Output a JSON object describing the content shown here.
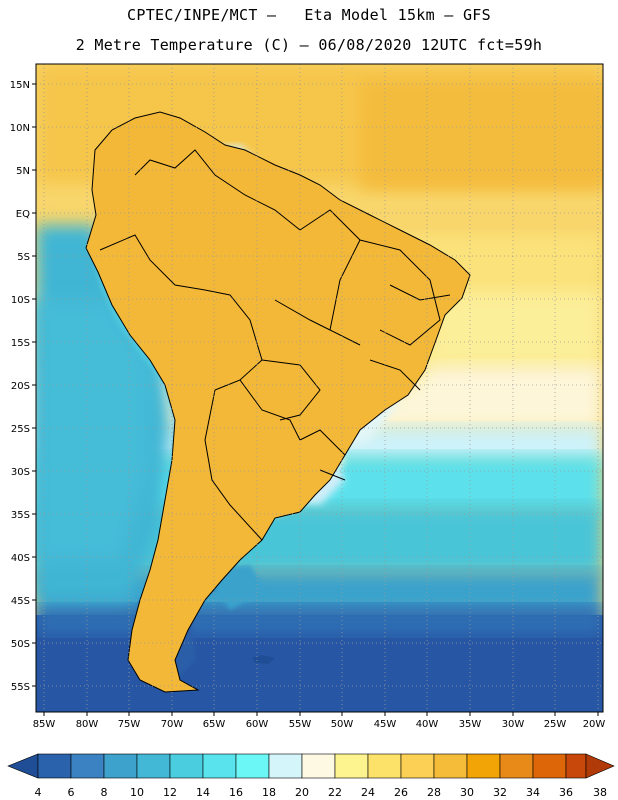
{
  "header": {
    "title_line1": "CPTEC/INPE/MCT –   Eta Model 15km – GFS",
    "title_line2": "2 Metre Temperature (C) – 06/08/2020 12UTC fct=59h"
  },
  "map": {
    "lat_ticks": [
      "15N",
      "10N",
      "5N",
      "EQ",
      "5S",
      "10S",
      "15S",
      "20S",
      "25S",
      "30S",
      "35S",
      "40S",
      "45S",
      "50S",
      "55S"
    ],
    "lon_ticks": [
      "85W",
      "80W",
      "75W",
      "70W",
      "65W",
      "60W",
      "55W",
      "50W",
      "45W",
      "40W",
      "35W",
      "30W",
      "25W",
      "20W"
    ]
  },
  "legend": {
    "levels": [
      "4",
      "6",
      "8",
      "10",
      "12",
      "14",
      "16",
      "18",
      "20",
      "22",
      "24",
      "26",
      "28",
      "30",
      "32",
      "34",
      "36",
      "38"
    ],
    "colors": [
      "#1f4e96",
      "#2a63ac",
      "#3a82c2",
      "#3ea3cc",
      "#43b8d6",
      "#4bcde0",
      "#59e3ec",
      "#6cf7f7",
      "#d4f6fb",
      "#fdf9e3",
      "#fdf48f",
      "#fde26a",
      "#fbd054",
      "#f4bc39",
      "#f2a407",
      "#e88a18",
      "#dd6609",
      "#c8470a",
      "#b03a08"
    ]
  }
}
